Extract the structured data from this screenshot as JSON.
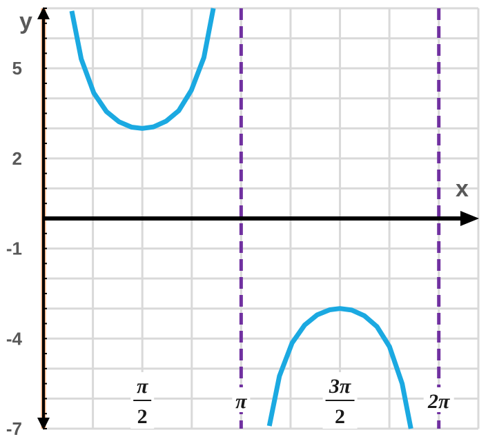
{
  "chart_data": {
    "type": "line",
    "function": "y = 3csc(x)",
    "xlabel": "x",
    "ylabel": "y",
    "xlim": [
      0,
      6.9115
    ],
    "ylim": [
      -7,
      7
    ],
    "grid": true,
    "y_ticks": [
      {
        "value": 5,
        "label": "5"
      },
      {
        "value": 2,
        "label": "2"
      },
      {
        "value": -1,
        "label": "-1"
      },
      {
        "value": -4,
        "label": "-4"
      },
      {
        "value": -7,
        "label": "-7"
      }
    ],
    "x_ticks": [
      {
        "value": 1.5708,
        "num": "π",
        "den": "2"
      },
      {
        "value": 3.1416,
        "label": "π"
      },
      {
        "value": 4.7124,
        "num": "3π",
        "den": "2"
      },
      {
        "value": 6.2832,
        "label": "2π"
      }
    ],
    "asymptotes": [
      3.1416,
      6.2832
    ],
    "series": [
      {
        "color": "#1ba9e1",
        "x": [
          0.45,
          0.6,
          0.8,
          1.0,
          1.2,
          1.4,
          1.5708,
          1.75,
          1.95,
          2.15,
          2.35,
          2.55,
          2.7
        ],
        "y": [
          6.91,
          5.31,
          4.18,
          3.56,
          3.22,
          3.04,
          3.0,
          3.05,
          3.24,
          3.59,
          4.27,
          5.36,
          7.0
        ]
      },
      {
        "color": "#1ba9e1",
        "x": [
          3.59,
          3.75,
          3.95,
          4.15,
          4.35,
          4.55,
          4.7124,
          4.9,
          5.1,
          5.3,
          5.5,
          5.7,
          5.84
        ],
        "y": [
          -6.91,
          -5.25,
          -4.15,
          -3.55,
          -3.21,
          -3.04,
          -3.0,
          -3.05,
          -3.24,
          -3.6,
          -4.27,
          -5.5,
          -7.0
        ]
      }
    ],
    "colors": {
      "curve": "#1ba9e1",
      "asymptote": "#7030a0",
      "axis": "#000000",
      "grid": "#d9d9d9",
      "y_axis_accent": "#f4b183"
    }
  }
}
